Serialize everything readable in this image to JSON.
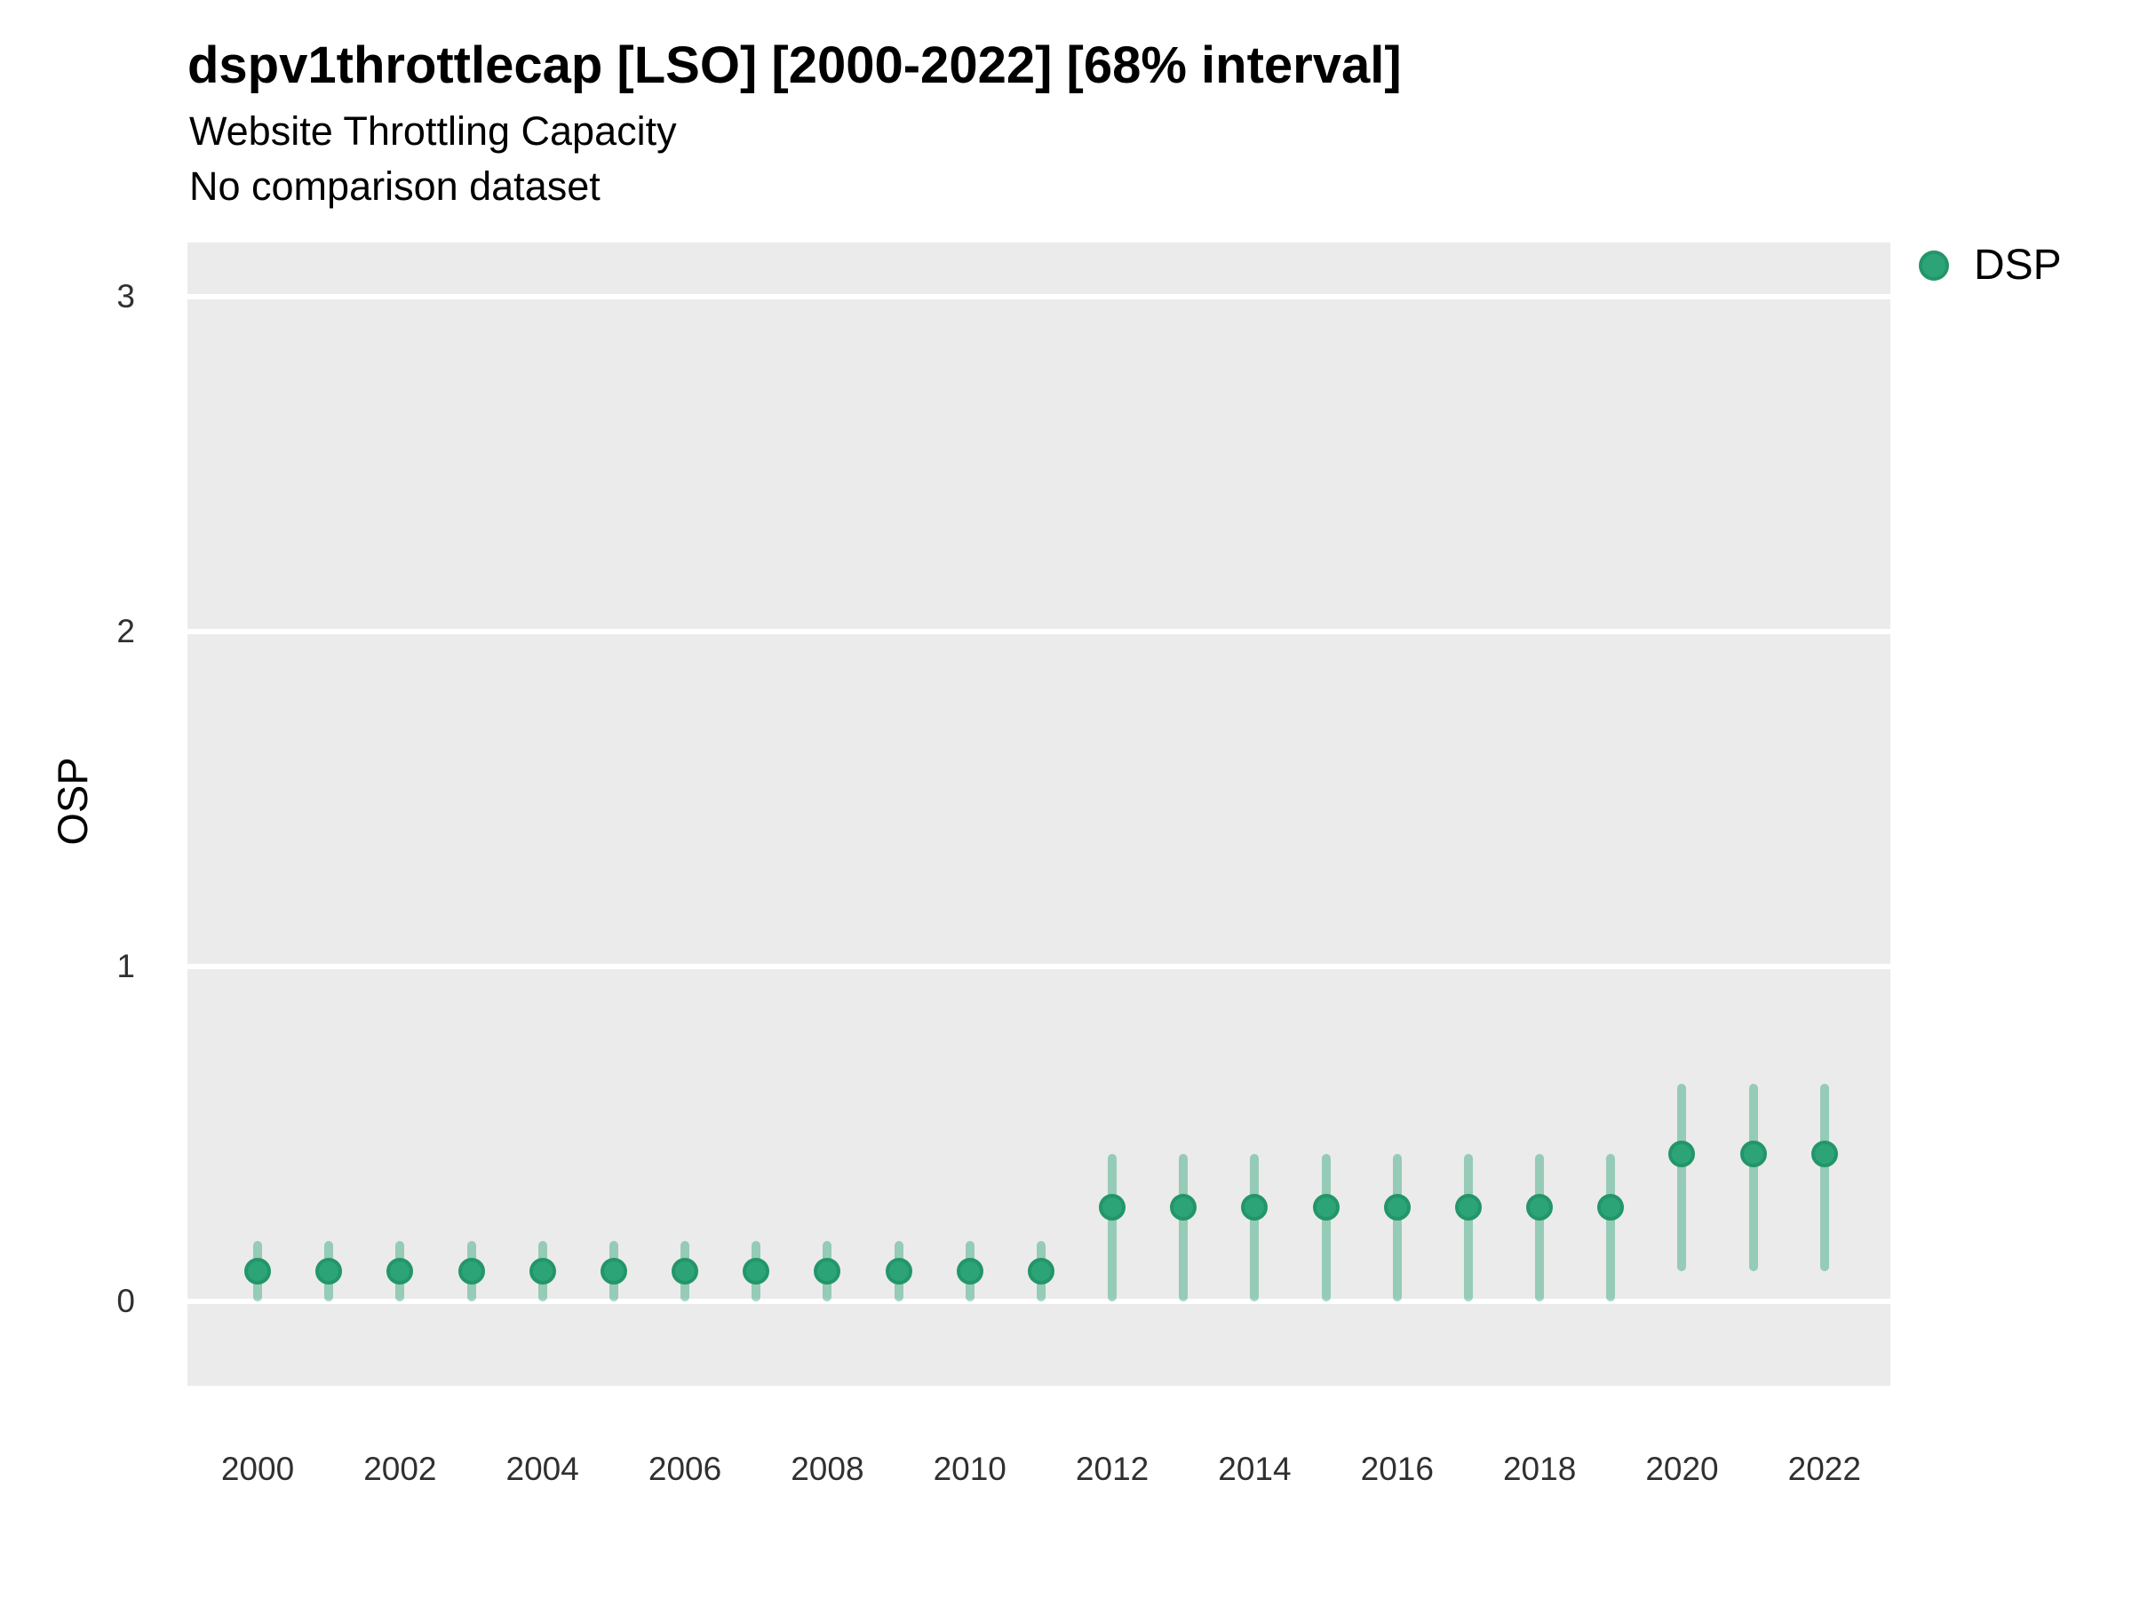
{
  "header": {
    "title": "dspv1throttlecap [LSO] [2000-2022] [68% interval]",
    "subtitle": "Website Throttling Capacity",
    "comparison_note": "No comparison dataset"
  },
  "legend": {
    "position": "right-top",
    "items": [
      {
        "label": "DSP",
        "color": "#2da477",
        "ring_color": "#239669",
        "marker": "circle"
      }
    ]
  },
  "colors": {
    "panel_background": "#ebebeb",
    "gridline": "#ffffff",
    "point_fill": "#2da477",
    "point_stroke": "#239669",
    "interval_bar": "rgba(45,164,119,0.45)",
    "axis_text": "#303030",
    "title_text": "#000000"
  },
  "chart_data": {
    "type": "scatter",
    "title": "dspv1throttlecap [LSO] [2000-2022] [68% interval]",
    "subtitle": "Website Throttling Capacity",
    "note": "No comparison dataset",
    "interval_label": "68% interval",
    "xlabel": "",
    "ylabel": "OSP",
    "grid": "horizontal-major-only",
    "legend_position": "right-top",
    "x_tick_labels": [
      "2000",
      "2002",
      "2004",
      "2006",
      "2008",
      "2010",
      "2012",
      "2014",
      "2016",
      "2018",
      "2020",
      "2022"
    ],
    "x_tick_years": [
      2000,
      2002,
      2004,
      2006,
      2008,
      2010,
      2012,
      2014,
      2016,
      2018,
      2020,
      2022
    ],
    "y_ticks": [
      0,
      1,
      2,
      3
    ],
    "ylim": [
      -0.25,
      3.16
    ],
    "xlim": [
      1999.0,
      2022.95
    ],
    "x": [
      2000,
      2001,
      2002,
      2003,
      2004,
      2005,
      2006,
      2007,
      2008,
      2009,
      2010,
      2011,
      2012,
      2013,
      2014,
      2015,
      2016,
      2017,
      2018,
      2019,
      2020,
      2021,
      2022
    ],
    "series": [
      {
        "name": "DSP",
        "estimates": [
          0.09,
          0.09,
          0.09,
          0.09,
          0.09,
          0.09,
          0.09,
          0.09,
          0.09,
          0.09,
          0.09,
          0.09,
          0.28,
          0.28,
          0.28,
          0.28,
          0.28,
          0.28,
          0.28,
          0.28,
          0.44,
          0.44,
          0.44
        ],
        "lower_68": [
          0.0,
          0.0,
          0.0,
          0.0,
          0.0,
          0.0,
          0.0,
          0.0,
          0.0,
          0.0,
          0.0,
          0.0,
          0.0,
          0.0,
          0.0,
          0.0,
          0.0,
          0.0,
          0.0,
          0.0,
          0.09,
          0.09,
          0.09
        ],
        "upper_68": [
          0.18,
          0.18,
          0.18,
          0.18,
          0.18,
          0.18,
          0.18,
          0.18,
          0.18,
          0.18,
          0.18,
          0.18,
          0.44,
          0.44,
          0.44,
          0.44,
          0.44,
          0.44,
          0.44,
          0.44,
          0.65,
          0.65,
          0.65
        ]
      }
    ]
  }
}
